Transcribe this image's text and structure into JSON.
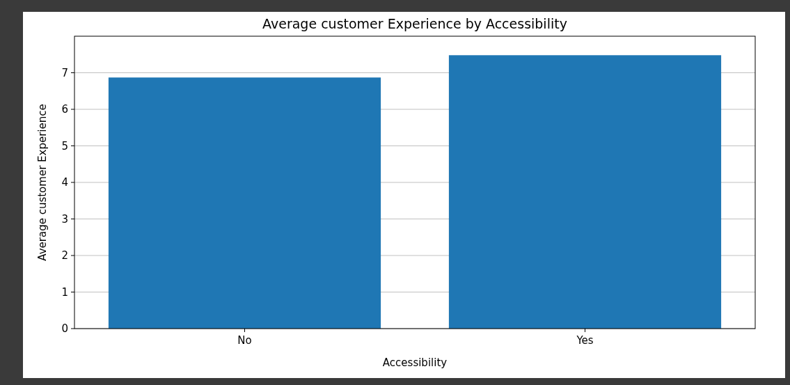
{
  "chart_data": {
    "type": "bar",
    "title": "Average customer Experience by Accessibility",
    "xlabel": "Accessibility",
    "ylabel": "Average customer Experience",
    "categories": [
      "No",
      "Yes"
    ],
    "values": [
      6.87,
      7.48
    ],
    "color": "#1f77b4",
    "ylim": [
      0,
      8
    ],
    "yticks": [
      0,
      1,
      2,
      3,
      4,
      5,
      6,
      7
    ],
    "grid": "y"
  }
}
